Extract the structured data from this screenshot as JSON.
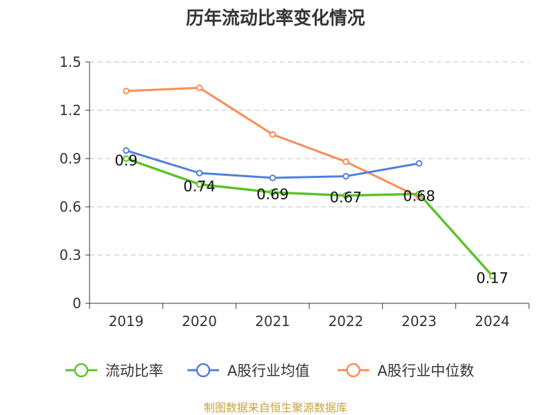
{
  "chart_data": {
    "type": "line",
    "title": "历年流动比率变化情况",
    "categories": [
      "2019",
      "2020",
      "2021",
      "2022",
      "2023",
      "2024"
    ],
    "ylim": [
      0,
      1.5
    ],
    "yticks": [
      "0",
      "0.3",
      "0.6",
      "0.9",
      "1.2",
      "1.5"
    ],
    "grid": true,
    "legend_position": "bottom",
    "series": [
      {
        "name": "流动比率",
        "color": "#5cc229",
        "values": [
          0.9,
          0.74,
          0.69,
          0.67,
          0.68,
          0.17
        ],
        "labels": [
          "0.9",
          "0.74",
          "0.69",
          "0.67",
          "0.68",
          "0.17"
        ]
      },
      {
        "name": "A股行业均值",
        "color": "#4d7fe0",
        "values": [
          0.95,
          0.81,
          0.78,
          0.79,
          0.87,
          null
        ]
      },
      {
        "name": "A股行业中位数",
        "color": "#fb8b55",
        "values": [
          1.32,
          1.34,
          1.05,
          0.88,
          0.66,
          null
        ]
      }
    ]
  },
  "source": "制图数据来自恒生聚源数据库"
}
